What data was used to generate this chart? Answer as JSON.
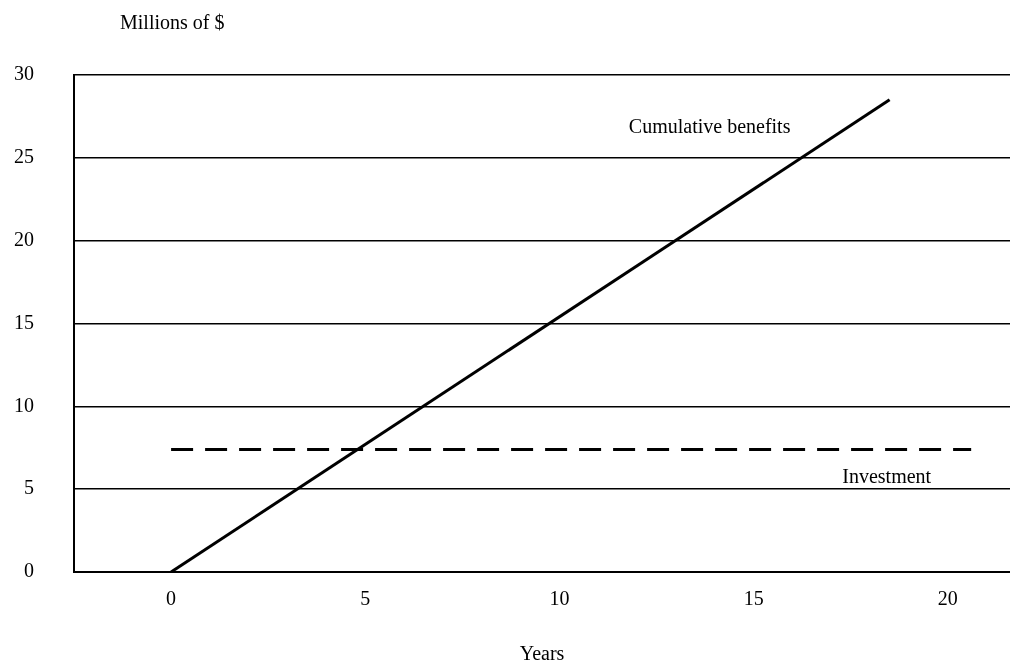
{
  "chart_data": {
    "type": "line",
    "ylabel": "Millions of $",
    "xlabel": "Years",
    "xlim": [
      -2.5,
      21.6
    ],
    "xticks": [
      0,
      5,
      10,
      15,
      20
    ],
    "ylim": [
      0,
      30
    ],
    "yticks": [
      0,
      5,
      10,
      15,
      20,
      25,
      30
    ],
    "grid": "y",
    "marker": "none",
    "series": [
      {
        "name": "Cumulative benefits",
        "x": [
          0,
          18.5
        ],
        "values": [
          0,
          28.5
        ],
        "color": "#000000",
        "line_style": "solid"
      },
      {
        "name": "Investment",
        "x": [
          0,
          20.6
        ],
        "values": [
          7.4,
          7.4
        ],
        "color": "#000000",
        "line_style": "dashed"
      }
    ]
  }
}
